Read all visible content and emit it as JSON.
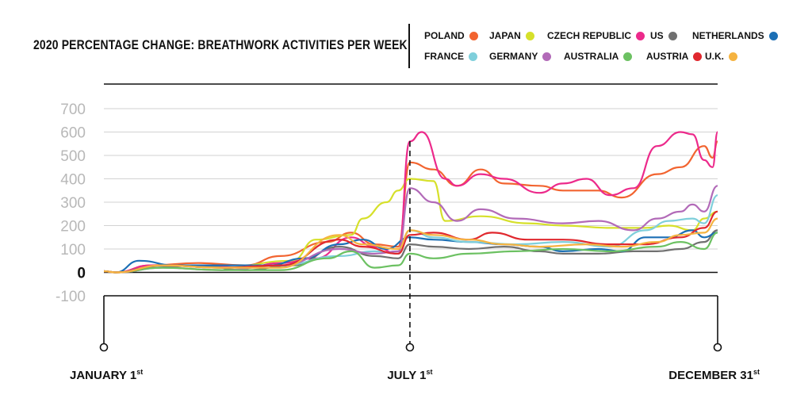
{
  "chart_data": {
    "type": "line",
    "title": "2020 PERCENTAGE CHANGE: BREATHWORK ACTIVITIES PER WEEK",
    "ylim": [
      -100,
      700
    ],
    "yticks": [
      700,
      600,
      500,
      400,
      300,
      200,
      100,
      0,
      -100
    ],
    "x_start": "2020-01-01",
    "x_end": "2020-12-31",
    "milestones": [
      {
        "label": "JANUARY 1",
        "suffix": "st",
        "date": "2020-01-01"
      },
      {
        "label": "JULY 1",
        "suffix": "st",
        "date": "2020-07-01"
      },
      {
        "label": "DECEMBER 31",
        "suffix": "st",
        "date": "2020-12-31"
      }
    ],
    "series": [
      {
        "name": "POLAND",
        "color": "#f26430",
        "points": [
          [
            "2020-01-01",
            5
          ],
          [
            "2020-01-08",
            0
          ],
          [
            "2020-01-29",
            30
          ],
          [
            "2020-02-26",
            40
          ],
          [
            "2020-03-25",
            30
          ],
          [
            "2020-04-15",
            70
          ],
          [
            "2020-05-13",
            130
          ],
          [
            "2020-05-27",
            170
          ],
          [
            "2020-06-10",
            120
          ],
          [
            "2020-06-24",
            110
          ],
          [
            "2020-07-01",
            470
          ],
          [
            "2020-07-15",
            440
          ],
          [
            "2020-07-29",
            370
          ],
          [
            "2020-08-12",
            440
          ],
          [
            "2020-08-26",
            380
          ],
          [
            "2020-09-16",
            370
          ],
          [
            "2020-09-30",
            350
          ],
          [
            "2020-10-21",
            350
          ],
          [
            "2020-11-04",
            320
          ],
          [
            "2020-11-25",
            420
          ],
          [
            "2020-12-09",
            450
          ],
          [
            "2020-12-23",
            540
          ],
          [
            "2020-12-28",
            490
          ],
          [
            "2020-12-31",
            560
          ]
        ]
      },
      {
        "name": "JAPAN",
        "color": "#d6e02a",
        "points": [
          [
            "2020-01-01",
            5
          ],
          [
            "2020-01-08",
            0
          ],
          [
            "2020-02-05",
            30
          ],
          [
            "2020-03-11",
            20
          ],
          [
            "2020-04-22",
            50
          ],
          [
            "2020-05-06",
            140
          ],
          [
            "2020-05-27",
            160
          ],
          [
            "2020-06-03",
            230
          ],
          [
            "2020-06-17",
            300
          ],
          [
            "2020-06-24",
            350
          ],
          [
            "2020-07-01",
            400
          ],
          [
            "2020-07-15",
            390
          ],
          [
            "2020-07-22",
            220
          ],
          [
            "2020-08-12",
            240
          ],
          [
            "2020-09-09",
            210
          ],
          [
            "2020-09-30",
            200
          ],
          [
            "2020-10-28",
            190
          ],
          [
            "2020-11-18",
            190
          ],
          [
            "2020-12-02",
            200
          ],
          [
            "2020-12-16",
            180
          ],
          [
            "2020-12-23",
            230
          ],
          [
            "2020-12-31",
            260
          ]
        ]
      },
      {
        "name": "CZECH REPUBLIC",
        "color": "#ec2a8b",
        "points": [
          [
            "2020-01-01",
            5
          ],
          [
            "2020-01-08",
            0
          ],
          [
            "2020-01-29",
            30
          ],
          [
            "2020-02-26",
            30
          ],
          [
            "2020-03-25",
            20
          ],
          [
            "2020-04-15",
            40
          ],
          [
            "2020-05-06",
            60
          ],
          [
            "2020-05-27",
            150
          ],
          [
            "2020-06-10",
            110
          ],
          [
            "2020-06-24",
            80
          ],
          [
            "2020-07-01",
            560
          ],
          [
            "2020-07-08",
            600
          ],
          [
            "2020-07-22",
            400
          ],
          [
            "2020-07-29",
            370
          ],
          [
            "2020-08-12",
            420
          ],
          [
            "2020-08-26",
            400
          ],
          [
            "2020-09-16",
            340
          ],
          [
            "2020-09-30",
            380
          ],
          [
            "2020-10-14",
            400
          ],
          [
            "2020-10-28",
            330
          ],
          [
            "2020-11-11",
            360
          ],
          [
            "2020-11-25",
            540
          ],
          [
            "2020-12-09",
            600
          ],
          [
            "2020-12-16",
            590
          ],
          [
            "2020-12-23",
            480
          ],
          [
            "2020-12-28",
            450
          ],
          [
            "2020-12-31",
            600
          ]
        ]
      },
      {
        "name": "US",
        "color": "#707070",
        "points": [
          [
            "2020-01-01",
            5
          ],
          [
            "2020-01-08",
            0
          ],
          [
            "2020-01-29",
            20
          ],
          [
            "2020-02-26",
            30
          ],
          [
            "2020-03-25",
            10
          ],
          [
            "2020-04-22",
            30
          ],
          [
            "2020-05-20",
            110
          ],
          [
            "2020-06-10",
            70
          ],
          [
            "2020-06-24",
            60
          ],
          [
            "2020-07-01",
            120
          ],
          [
            "2020-07-15",
            110
          ],
          [
            "2020-08-05",
            100
          ],
          [
            "2020-08-26",
            110
          ],
          [
            "2020-09-16",
            90
          ],
          [
            "2020-09-30",
            80
          ],
          [
            "2020-10-21",
            80
          ],
          [
            "2020-11-11",
            90
          ],
          [
            "2020-11-25",
            90
          ],
          [
            "2020-12-09",
            100
          ],
          [
            "2020-12-23",
            130
          ],
          [
            "2020-12-31",
            180
          ]
        ]
      },
      {
        "name": "NETHERLANDS",
        "color": "#1c6fb5",
        "points": [
          [
            "2020-01-01",
            5
          ],
          [
            "2020-01-08",
            0
          ],
          [
            "2020-01-22",
            50
          ],
          [
            "2020-02-12",
            30
          ],
          [
            "2020-03-11",
            30
          ],
          [
            "2020-04-08",
            30
          ],
          [
            "2020-04-29",
            60
          ],
          [
            "2020-05-20",
            120
          ],
          [
            "2020-06-03",
            140
          ],
          [
            "2020-06-17",
            100
          ],
          [
            "2020-07-01",
            150
          ],
          [
            "2020-07-15",
            140
          ],
          [
            "2020-08-05",
            130
          ],
          [
            "2020-08-26",
            120
          ],
          [
            "2020-09-16",
            110
          ],
          [
            "2020-09-30",
            90
          ],
          [
            "2020-10-21",
            100
          ],
          [
            "2020-11-04",
            90
          ],
          [
            "2020-11-18",
            150
          ],
          [
            "2020-12-02",
            150
          ],
          [
            "2020-12-16",
            180
          ],
          [
            "2020-12-23",
            150
          ],
          [
            "2020-12-31",
            170
          ]
        ]
      },
      {
        "name": "FRANCE",
        "color": "#7fcfdb",
        "points": [
          [
            "2020-01-01",
            5
          ],
          [
            "2020-01-08",
            0
          ],
          [
            "2020-02-05",
            30
          ],
          [
            "2020-03-11",
            20
          ],
          [
            "2020-04-15",
            30
          ],
          [
            "2020-05-20",
            70
          ],
          [
            "2020-06-10",
            90
          ],
          [
            "2020-06-24",
            80
          ],
          [
            "2020-07-01",
            180
          ],
          [
            "2020-07-15",
            150
          ],
          [
            "2020-08-05",
            130
          ],
          [
            "2020-09-02",
            120
          ],
          [
            "2020-09-30",
            130
          ],
          [
            "2020-10-28",
            110
          ],
          [
            "2020-11-18",
            180
          ],
          [
            "2020-12-02",
            220
          ],
          [
            "2020-12-16",
            230
          ],
          [
            "2020-12-23",
            210
          ],
          [
            "2020-12-31",
            330
          ]
        ]
      },
      {
        "name": "GERMANY",
        "color": "#b26ab8",
        "points": [
          [
            "2020-01-01",
            5
          ],
          [
            "2020-01-08",
            0
          ],
          [
            "2020-02-05",
            20
          ],
          [
            "2020-03-11",
            10
          ],
          [
            "2020-04-15",
            30
          ],
          [
            "2020-05-20",
            100
          ],
          [
            "2020-06-10",
            80
          ],
          [
            "2020-06-24",
            90
          ],
          [
            "2020-07-01",
            360
          ],
          [
            "2020-07-15",
            300
          ],
          [
            "2020-07-29",
            220
          ],
          [
            "2020-08-12",
            270
          ],
          [
            "2020-09-02",
            230
          ],
          [
            "2020-09-30",
            210
          ],
          [
            "2020-10-21",
            220
          ],
          [
            "2020-11-11",
            180
          ],
          [
            "2020-11-25",
            230
          ],
          [
            "2020-12-09",
            260
          ],
          [
            "2020-12-16",
            290
          ],
          [
            "2020-12-23",
            260
          ],
          [
            "2020-12-31",
            370
          ]
        ]
      },
      {
        "name": "AUSTRALIA",
        "color": "#6cc162",
        "points": [
          [
            "2020-01-01",
            5
          ],
          [
            "2020-01-08",
            0
          ],
          [
            "2020-02-05",
            20
          ],
          [
            "2020-03-11",
            10
          ],
          [
            "2020-04-15",
            10
          ],
          [
            "2020-05-13",
            60
          ],
          [
            "2020-05-27",
            90
          ],
          [
            "2020-06-10",
            20
          ],
          [
            "2020-06-24",
            30
          ],
          [
            "2020-07-01",
            80
          ],
          [
            "2020-07-15",
            60
          ],
          [
            "2020-08-05",
            80
          ],
          [
            "2020-09-02",
            90
          ],
          [
            "2020-09-30",
            100
          ],
          [
            "2020-10-28",
            90
          ],
          [
            "2020-11-25",
            110
          ],
          [
            "2020-12-09",
            130
          ],
          [
            "2020-12-23",
            100
          ],
          [
            "2020-12-31",
            170
          ]
        ]
      },
      {
        "name": "AUSTRIA",
        "color": "#e0282e",
        "points": [
          [
            "2020-01-01",
            5
          ],
          [
            "2020-01-08",
            0
          ],
          [
            "2020-02-05",
            30
          ],
          [
            "2020-03-11",
            20
          ],
          [
            "2020-04-15",
            30
          ],
          [
            "2020-05-20",
            140
          ],
          [
            "2020-06-03",
            110
          ],
          [
            "2020-06-24",
            80
          ],
          [
            "2020-07-01",
            160
          ],
          [
            "2020-07-15",
            170
          ],
          [
            "2020-08-05",
            140
          ],
          [
            "2020-08-19",
            170
          ],
          [
            "2020-09-09",
            140
          ],
          [
            "2020-09-30",
            140
          ],
          [
            "2020-10-28",
            120
          ],
          [
            "2020-11-18",
            120
          ],
          [
            "2020-12-09",
            150
          ],
          [
            "2020-12-23",
            190
          ],
          [
            "2020-12-31",
            260
          ]
        ]
      },
      {
        "name": "U.K.",
        "color": "#f5b340",
        "points": [
          [
            "2020-01-01",
            5
          ],
          [
            "2020-01-08",
            0
          ],
          [
            "2020-02-05",
            30
          ],
          [
            "2020-03-11",
            20
          ],
          [
            "2020-04-15",
            20
          ],
          [
            "2020-05-20",
            160
          ],
          [
            "2020-06-03",
            120
          ],
          [
            "2020-06-24",
            100
          ],
          [
            "2020-07-01",
            180
          ],
          [
            "2020-07-15",
            160
          ],
          [
            "2020-08-05",
            140
          ],
          [
            "2020-08-26",
            120
          ],
          [
            "2020-09-16",
            110
          ],
          [
            "2020-10-14",
            120
          ],
          [
            "2020-11-04",
            110
          ],
          [
            "2020-11-25",
            130
          ],
          [
            "2020-12-09",
            160
          ],
          [
            "2020-12-23",
            170
          ],
          [
            "2020-12-31",
            230
          ]
        ]
      }
    ]
  }
}
